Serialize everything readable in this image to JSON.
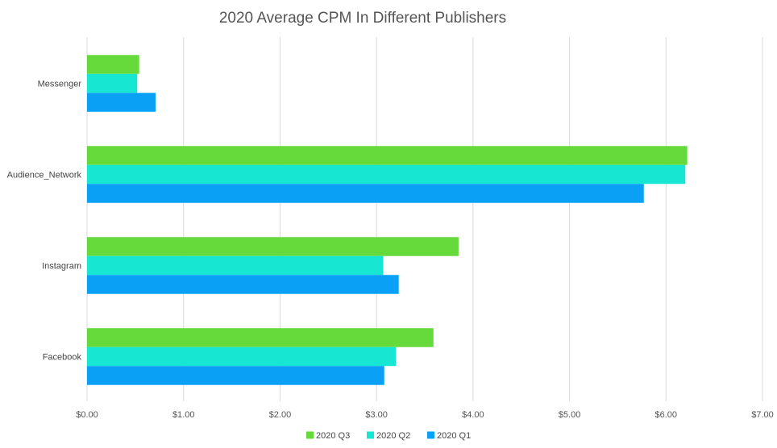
{
  "chart_data": {
    "type": "bar",
    "orientation": "horizontal",
    "title": "2020 Average CPM In Different Publishers",
    "xlabel": "",
    "ylabel": "",
    "categories": [
      "Messenger",
      "Audience_Network",
      "Instagram",
      "Facebook"
    ],
    "series": [
      {
        "name": "2020 Q3",
        "color": "#66d93b",
        "values": [
          0.54,
          6.22,
          3.85,
          3.59
        ]
      },
      {
        "name": "2020 Q2",
        "color": "#16e6d2",
        "values": [
          0.52,
          6.2,
          3.07,
          3.2
        ]
      },
      {
        "name": "2020 Q1",
        "color": "#0aa0f5",
        "values": [
          0.71,
          5.77,
          3.23,
          3.08
        ]
      }
    ],
    "xlim": [
      0,
      7
    ],
    "xticks": [
      0,
      1,
      2,
      3,
      4,
      5,
      6,
      7
    ],
    "xtick_labels": [
      "$0.00",
      "$1.00",
      "$2.00",
      "$3.00",
      "$4.00",
      "$5.00",
      "$6.00",
      "$7.00"
    ],
    "grid": true,
    "legend_position": "bottom-center"
  }
}
